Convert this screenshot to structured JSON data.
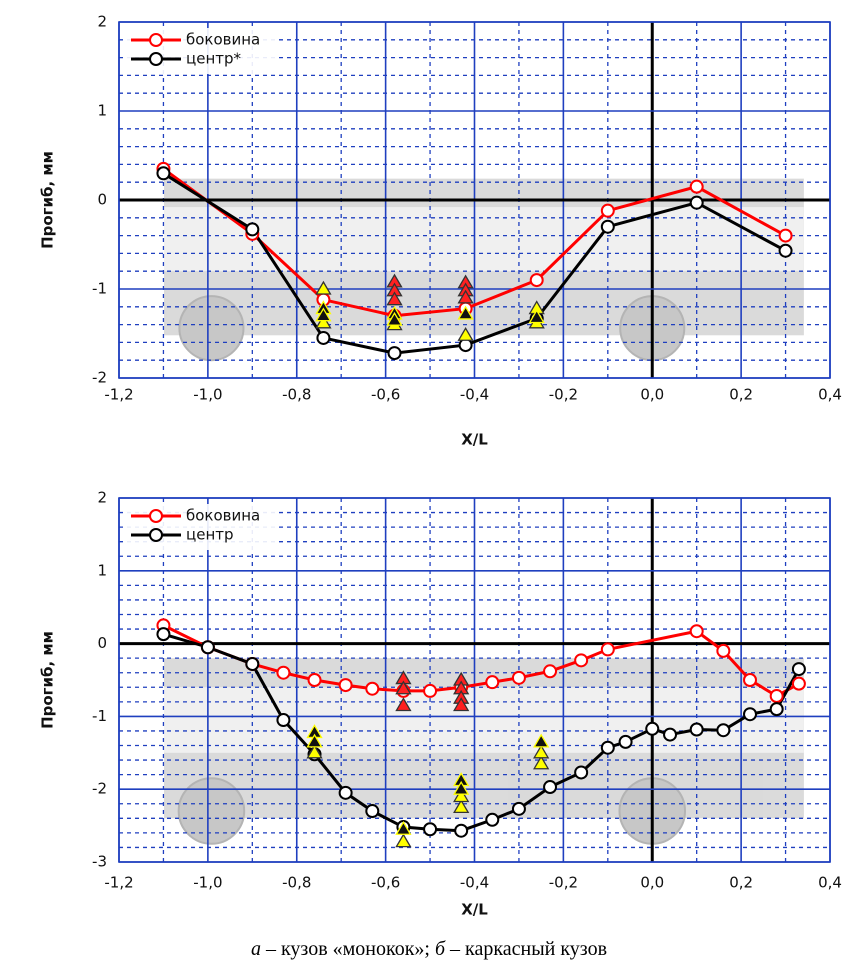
{
  "chart_data": [
    {
      "type": "line",
      "xlabel": "X/L",
      "ylabel": "Прогиб, мм",
      "legend": "upper left",
      "grid": true,
      "xlim": [
        -1.2,
        0.4
      ],
      "ylim": [
        -2,
        2
      ],
      "xticks": [
        {
          "value": -1.2,
          "label": "-1,2"
        },
        {
          "value": -1.0,
          "label": "-1,0"
        },
        {
          "value": -0.8,
          "label": "-0,8"
        },
        {
          "value": -0.6,
          "label": "-0,6"
        },
        {
          "value": -0.4,
          "label": "-0,4"
        },
        {
          "value": -0.2,
          "label": "-0,2"
        },
        {
          "value": 0,
          "label": "0,0"
        },
        {
          "value": 0.2,
          "label": "0,2"
        },
        {
          "value": 0.4,
          "label": "0,4"
        }
      ],
      "yticks": [
        -2,
        -1,
        0,
        1,
        2
      ],
      "series": [
        {
          "name": "боковина",
          "color": "#ff0000",
          "marker": "circle",
          "x": [
            -1.1,
            -0.9,
            -0.74,
            -0.58,
            -0.42,
            -0.26,
            -0.1,
            0.1,
            0.3
          ],
          "values": [
            0.35,
            -0.38,
            -1.12,
            -1.3,
            -1.22,
            -0.9,
            -0.12,
            0.15,
            -0.4
          ]
        },
        {
          "name": "центр*",
          "color": "#000000",
          "marker": "circle",
          "x": [
            -1.1,
            -0.9,
            -0.74,
            -0.58,
            -0.42,
            -0.26,
            -0.1,
            0.1,
            0.3
          ],
          "values": [
            0.3,
            -0.33,
            -1.55,
            -1.72,
            -1.63,
            -1.33,
            -0.3,
            -0.03,
            -0.57
          ]
        },
        {
          "color": "#ffff00",
          "marker": "triangle",
          "x": [
            -0.74,
            -0.74,
            -0.58,
            -0.42,
            -0.26,
            -0.26
          ],
          "values": [
            -1.0,
            -1.38,
            -1.4,
            -1.52,
            -1.22,
            -1.38
          ]
        },
        {
          "color": "#ff2020",
          "marker": "triangle",
          "x": [
            -0.58,
            -0.58,
            -0.58,
            -0.42,
            -0.42,
            -0.42
          ],
          "values": [
            -0.92,
            -1.02,
            -1.12,
            -0.93,
            -1.02,
            -1.1
          ]
        },
        {
          "color": "#111111",
          "marker": "triangle",
          "x": [
            -0.74,
            -0.74,
            -0.58,
            -0.58,
            -0.42,
            -0.26
          ],
          "values": [
            -1.22,
            -1.3,
            -1.28,
            -1.35,
            -1.28,
            -1.32
          ]
        }
      ]
    },
    {
      "type": "line",
      "xlabel": "X/L",
      "ylabel": "Прогиб, мм",
      "legend": "upper left",
      "grid": true,
      "xlim": [
        -1.2,
        0.4
      ],
      "ylim": [
        -3,
        2
      ],
      "xticks": [
        {
          "value": -1.2,
          "label": "-1,2"
        },
        {
          "value": -1.0,
          "label": "-1,0"
        },
        {
          "value": -0.8,
          "label": "-0,8"
        },
        {
          "value": -0.6,
          "label": "-0,6"
        },
        {
          "value": -0.4,
          "label": "-0,4"
        },
        {
          "value": -0.2,
          "label": "-0,2"
        },
        {
          "value": 0,
          "label": "0,0"
        },
        {
          "value": 0.2,
          "label": "0,2"
        },
        {
          "value": 0.4,
          "label": "0,4"
        }
      ],
      "yticks": [
        -3,
        -2,
        -1,
        0,
        1,
        2
      ],
      "series": [
        {
          "name": "боковина",
          "color": "#ff0000",
          "marker": "circle",
          "x": [
            -1.1,
            -1.0,
            -0.9,
            -0.83,
            -0.76,
            -0.69,
            -0.63,
            -0.56,
            -0.5,
            -0.43,
            -0.36,
            -0.3,
            -0.23,
            -0.16,
            -0.1,
            0.1,
            0.16,
            0.22,
            0.28,
            0.33
          ],
          "values": [
            0.25,
            -0.05,
            -0.28,
            -0.4,
            -0.5,
            -0.57,
            -0.62,
            -0.65,
            -0.65,
            -0.6,
            -0.53,
            -0.47,
            -0.38,
            -0.23,
            -0.08,
            0.17,
            -0.1,
            -0.5,
            -0.72,
            -0.55
          ]
        },
        {
          "name": "центр",
          "color": "#000000",
          "marker": "circle",
          "x": [
            -1.1,
            -1.0,
            -0.9,
            -0.83,
            -0.76,
            -0.69,
            -0.63,
            -0.56,
            -0.5,
            -0.43,
            -0.36,
            -0.3,
            -0.23,
            -0.16,
            -0.1,
            -0.06,
            0.0,
            0.04,
            0.1,
            0.16,
            0.22,
            0.28,
            0.33
          ],
          "values": [
            0.13,
            -0.05,
            -0.28,
            -1.05,
            -1.52,
            -2.05,
            -2.3,
            -2.52,
            -2.55,
            -2.57,
            -2.42,
            -2.27,
            -1.97,
            -1.77,
            -1.43,
            -1.35,
            -1.17,
            -1.25,
            -1.18,
            -1.19,
            -0.97,
            -0.9,
            -0.35
          ]
        },
        {
          "color": "#ffff00",
          "marker": "triangle",
          "x": [
            -0.76,
            -0.56,
            -0.43,
            -0.43,
            -0.25,
            -0.25
          ],
          "values": [
            -1.5,
            -2.72,
            -2.25,
            -2.1,
            -1.65,
            -1.5
          ]
        },
        {
          "color": "#ff2020",
          "marker": "triangle",
          "x": [
            -0.56,
            -0.56,
            -0.56,
            -0.43,
            -0.43,
            -0.43,
            -0.43
          ],
          "values": [
            -0.48,
            -0.62,
            -0.85,
            -0.5,
            -0.62,
            -0.75,
            -0.85
          ]
        },
        {
          "color": "#111111",
          "marker": "triangle",
          "x": [
            -0.76,
            -0.76,
            -0.56,
            -0.43,
            -0.43,
            -0.25
          ],
          "values": [
            -1.22,
            -1.35,
            -2.55,
            -1.88,
            -2.0,
            -1.35
          ]
        }
      ]
    }
  ],
  "caption": {
    "a": "а",
    "a_text": "– кузов «монокок»;",
    "b": "б",
    "b_text": "– каркасный кузов"
  }
}
